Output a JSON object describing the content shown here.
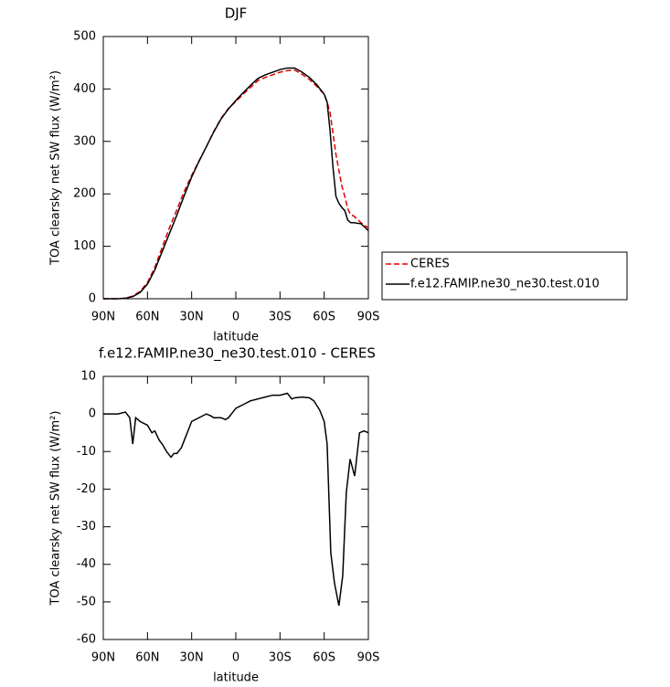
{
  "chart_data": [
    {
      "type": "line",
      "title": "DJF",
      "xlabel": "latitude",
      "ylabel": "TOA clearsky net SW flux (W/m²)",
      "x": [
        90,
        85,
        80,
        75,
        70,
        65,
        60,
        55,
        50,
        45,
        40,
        35,
        30,
        25,
        20,
        15,
        10,
        5,
        0,
        -5,
        -10,
        -15,
        -20,
        -25,
        -30,
        -35,
        -40,
        -45,
        -50,
        -55,
        -60,
        -62,
        -64,
        -66,
        -68,
        -70,
        -72,
        -74,
        -76,
        -78,
        -80,
        -85,
        -90
      ],
      "series": [
        {
          "name": "CERES",
          "color": "#dd0000",
          "dash": "dashed",
          "values": [
            0,
            0,
            0,
            1,
            5,
            14,
            31,
            60,
            98,
            136,
            170,
            205,
            235,
            263,
            290,
            319,
            344,
            363,
            376,
            390,
            403,
            416,
            422,
            427,
            432,
            435,
            436,
            428,
            418,
            405,
            390,
            375,
            355,
            315,
            275,
            245,
            215,
            195,
            172,
            160,
            158,
            145,
            135
          ]
        },
        {
          "name": "f.e12.FAMIP.ne30_ne30.test.010",
          "color": "#000000",
          "dash": "solid",
          "values": [
            0,
            0,
            0,
            1,
            4,
            12,
            28,
            55,
            90,
            125,
            160,
            197,
            232,
            262,
            290,
            318,
            343,
            362,
            378,
            393,
            407,
            420,
            427,
            432,
            437,
            440,
            440,
            432,
            422,
            408,
            390,
            375,
            320,
            250,
            195,
            182,
            174,
            168,
            150,
            145,
            145,
            143,
            130
          ]
        }
      ],
      "xlim": [
        90,
        -90
      ],
      "xticks": [
        {
          "value": 90,
          "label": "90N"
        },
        {
          "value": 60,
          "label": "60N"
        },
        {
          "value": 30,
          "label": "30N"
        },
        0,
        {
          "value": -30,
          "label": "30S"
        },
        {
          "value": -60,
          "label": "60S"
        },
        {
          "value": -90,
          "label": "90S"
        }
      ],
      "ylim": [
        0,
        500
      ],
      "yticks": [
        0,
        100,
        200,
        300,
        400,
        500
      ],
      "legend": "right"
    },
    {
      "type": "line",
      "title": "f.e12.FAMIP.ne30_ne30.test.010 - CERES",
      "xlabel": "latitude",
      "ylabel": "TOA clearsky net SW flux (W/m²)",
      "x": [
        90,
        85,
        80,
        75,
        72,
        70,
        68,
        65,
        60,
        57,
        55,
        52,
        50,
        47,
        44,
        42,
        40,
        37,
        35,
        32,
        30,
        25,
        20,
        17,
        15,
        10,
        7,
        5,
        0,
        -5,
        -10,
        -15,
        -20,
        -25,
        -30,
        -35,
        -38,
        -40,
        -45,
        -50,
        -53,
        -57,
        -60,
        -62,
        -64.5,
        -67,
        -70,
        -72.6,
        -75,
        -77.6,
        -80.7,
        -84,
        -87,
        -90
      ],
      "series": [
        {
          "name": "f.e12.FAMIP.ne30_ne30.test.010",
          "color": "#000000",
          "dash": "solid",
          "values": [
            0,
            0,
            0,
            0.5,
            -1,
            -8,
            -1,
            -2,
            -3,
            -5,
            -4.5,
            -7,
            -8,
            -10,
            -11.5,
            -10.5,
            -10.5,
            -9,
            -7,
            -4,
            -2,
            -1,
            0,
            -0.5,
            -1,
            -1,
            -1.5,
            -1,
            1.5,
            2.5,
            3.5,
            4,
            4.5,
            5,
            5,
            5.5,
            4,
            4.3,
            4.5,
            4.3,
            3.5,
            1,
            -2,
            -8,
            -37,
            -45,
            -51,
            -43,
            -21,
            -12,
            -16.5,
            -5,
            -4.5,
            -5
          ]
        }
      ],
      "xlim": [
        90,
        -90
      ],
      "xticks": [
        {
          "value": 90,
          "label": "90N"
        },
        {
          "value": 60,
          "label": "60N"
        },
        {
          "value": 30,
          "label": "30N"
        },
        0,
        {
          "value": -30,
          "label": "30S"
        },
        {
          "value": -60,
          "label": "60S"
        },
        {
          "value": -90,
          "label": "90S"
        }
      ],
      "ylim": [
        -60,
        10
      ],
      "yticks": [
        -60,
        -50,
        -40,
        -30,
        -20,
        -10,
        0,
        10
      ]
    }
  ]
}
